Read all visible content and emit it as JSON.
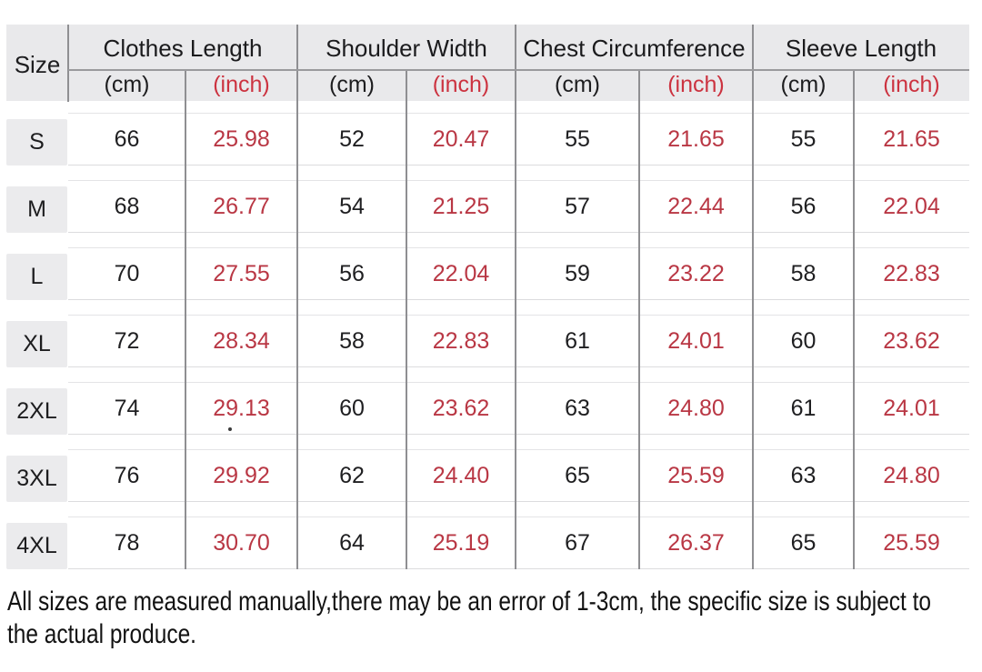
{
  "table": {
    "size_header": "Size",
    "groups": [
      {
        "label": "Clothes Length",
        "cm": "(cm)",
        "inch": "(inch)"
      },
      {
        "label": "Shoulder Width",
        "cm": "(cm)",
        "inch": "(inch)"
      },
      {
        "label": "Chest Circumference",
        "cm": "(cm)",
        "inch": "(inch)"
      },
      {
        "label": "Sleeve Length",
        "cm": "(cm)",
        "inch": "(inch)"
      }
    ],
    "rows": [
      {
        "size": "S",
        "values": [
          "66",
          "25.98",
          "52",
          "20.47",
          "55",
          "21.65",
          "55",
          "21.65"
        ]
      },
      {
        "size": "M",
        "values": [
          "68",
          "26.77",
          "54",
          "21.25",
          "57",
          "22.44",
          "56",
          "22.04"
        ]
      },
      {
        "size": "L",
        "values": [
          "70",
          "27.55",
          "56",
          "22.04",
          "59",
          "23.22",
          "58",
          "22.83"
        ]
      },
      {
        "size": "XL",
        "values": [
          "72",
          "28.34",
          "58",
          "22.83",
          "61",
          "24.01",
          "60",
          "23.62"
        ]
      },
      {
        "size": "2XL",
        "values": [
          "74",
          "29.13",
          "60",
          "23.62",
          "63",
          "24.80",
          "61",
          "24.01"
        ]
      },
      {
        "size": "3XL",
        "values": [
          "76",
          "29.92",
          "62",
          "24.40",
          "65",
          "25.59",
          "63",
          "24.80"
        ]
      },
      {
        "size": "4XL",
        "values": [
          "78",
          "30.70",
          "64",
          "25.19",
          "67",
          "26.37",
          "65",
          "25.59"
        ]
      }
    ]
  },
  "footer": {
    "line1": "All sizes are measured manually,there may be an error of 1-3cm, the specific size is subject to",
    "line2": "the actual produce."
  },
  "colors": {
    "inch_text_red": "#b93744",
    "header_inch_red": "#cc3340",
    "header_bg_gray": "#e9e9eb",
    "grid_line_gray": "#8f8f92",
    "row_divider_gray": "#dcdcde",
    "body_text": "#1f1f21"
  }
}
